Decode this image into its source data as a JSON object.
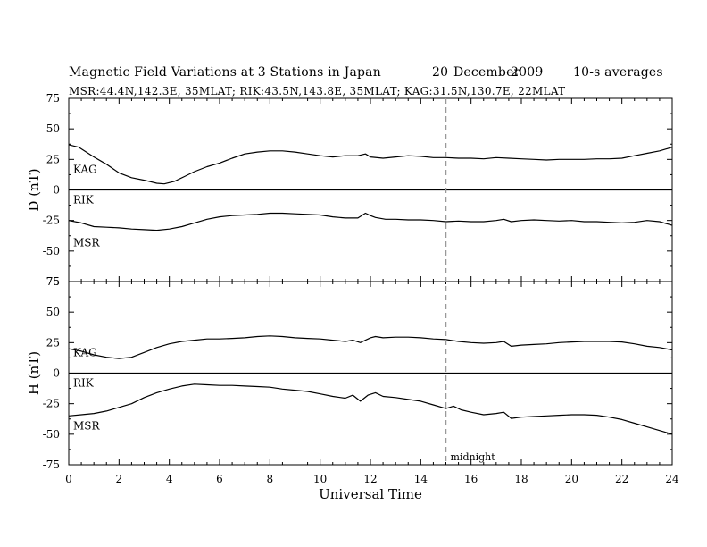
{
  "header": {
    "title": "Magnetic Field Variations at 3 Stations in Japan",
    "date_day": "20",
    "date_month": "December",
    "date_year": "2009",
    "averaging": "10-s averages",
    "stations": "MSR:44.4N,142.3E, 35MLAT;  RIK:43.5N,143.8E, 35MLAT;  KAG:31.5N,130.7E, 22MLAT"
  },
  "chart_data": [
    {
      "type": "line",
      "panel": "D",
      "ylabel": "D (nT)",
      "ylim": [
        -75,
        75
      ],
      "yticks": [
        75,
        50,
        25,
        0,
        -25,
        -50,
        -75
      ],
      "xlim": [
        0,
        24
      ],
      "series": [
        {
          "name": "KAG",
          "x": [
            0,
            0.4,
            1,
            1.5,
            2,
            2.5,
            3,
            3.5,
            3.8,
            4.2,
            4.6,
            5,
            5.5,
            6,
            6.5,
            7,
            7.5,
            8,
            8.5,
            9,
            9.5,
            10,
            10.5,
            11,
            11.5,
            11.8,
            12,
            12.5,
            13,
            13.5,
            14,
            14.5,
            15,
            15.5,
            16,
            16.5,
            17,
            17.5,
            18,
            18.5,
            19,
            19.5,
            20,
            20.5,
            21,
            21.5,
            22,
            22.5,
            23,
            23.5,
            24
          ],
          "y": [
            37,
            35,
            27,
            21,
            14,
            10,
            8,
            5.5,
            5,
            7,
            11,
            15,
            19,
            22,
            26,
            29.5,
            31,
            32,
            32,
            31,
            29.5,
            28,
            27,
            28,
            28,
            29.5,
            27,
            26,
            27,
            28,
            27.5,
            26.5,
            26.5,
            26,
            26,
            25.5,
            26.5,
            26,
            25.5,
            25,
            24.5,
            25,
            25,
            25,
            25.5,
            25.5,
            26,
            28,
            30,
            32,
            35
          ]
        },
        {
          "name": "RIK",
          "x": [
            0,
            24
          ],
          "y": [
            0,
            0
          ]
        },
        {
          "name": "MSR",
          "x": [
            0,
            0.5,
            1,
            1.5,
            2,
            2.5,
            3,
            3.5,
            4,
            4.5,
            5,
            5.5,
            6,
            6.5,
            7,
            7.5,
            8,
            8.5,
            9,
            9.5,
            10,
            10.5,
            11,
            11.5,
            11.8,
            12,
            12.2,
            12.6,
            13,
            13.5,
            14,
            14.5,
            15,
            15.5,
            16,
            16.5,
            17,
            17.3,
            17.6,
            18,
            18.5,
            19,
            19.5,
            20,
            20.5,
            21,
            21.5,
            22,
            22.5,
            23,
            23.5,
            24
          ],
          "y": [
            -25,
            -27,
            -30,
            -30.5,
            -31,
            -32,
            -32.5,
            -33,
            -32,
            -30,
            -27,
            -24,
            -22,
            -21,
            -20.5,
            -20,
            -19,
            -19,
            -19.5,
            -20,
            -20.5,
            -22,
            -23,
            -23,
            -19,
            -21,
            -22.5,
            -24,
            -24,
            -24.5,
            -24.5,
            -25,
            -26,
            -25.5,
            -26,
            -26,
            -25,
            -24,
            -26,
            -25,
            -24.5,
            -25,
            -25.5,
            -25,
            -26,
            -26,
            -26.5,
            -27,
            -26.5,
            -25,
            -26,
            -29
          ]
        }
      ]
    },
    {
      "type": "line",
      "panel": "H",
      "ylabel": "H (nT)",
      "ylim": [
        -75,
        75
      ],
      "yticks": [
        75,
        50,
        25,
        0,
        -25,
        -50,
        -75
      ],
      "xlim": [
        0,
        24
      ],
      "xticks": [
        0,
        2,
        4,
        6,
        8,
        10,
        12,
        14,
        16,
        18,
        20,
        22,
        24
      ],
      "xlabel": "Universal Time",
      "series": [
        {
          "name": "KAG",
          "x": [
            0,
            0.5,
            1,
            1.5,
            2,
            2.5,
            3,
            3.5,
            4,
            4.5,
            5,
            5.5,
            6,
            6.5,
            7,
            7.5,
            8,
            8.5,
            9,
            9.5,
            10,
            10.5,
            11,
            11.3,
            11.6,
            12,
            12.2,
            12.5,
            13,
            13.5,
            14,
            14.5,
            15,
            15.5,
            16,
            16.5,
            17,
            17.3,
            17.6,
            18,
            18.5,
            19,
            19.5,
            20,
            20.5,
            21,
            21.5,
            22,
            22.5,
            23,
            23.5,
            24
          ],
          "y": [
            20,
            18,
            15,
            13,
            12,
            13,
            17,
            21,
            24,
            26,
            27,
            28,
            28,
            28.5,
            29,
            30,
            30.5,
            30,
            29,
            28.5,
            28,
            27,
            26,
            27,
            25,
            29,
            30,
            29,
            29.5,
            29.5,
            29,
            28,
            27.5,
            26,
            25,
            24.5,
            25,
            26,
            22,
            23,
            23.5,
            24,
            25,
            25.5,
            26,
            26,
            26,
            25.5,
            24,
            22,
            21,
            19
          ]
        },
        {
          "name": "RIK",
          "x": [
            0,
            24
          ],
          "y": [
            0,
            0
          ]
        },
        {
          "name": "MSR",
          "x": [
            0,
            0.5,
            1,
            1.5,
            2,
            2.5,
            3,
            3.5,
            4,
            4.5,
            5,
            5.5,
            6,
            6.5,
            7,
            7.5,
            8,
            8.5,
            9,
            9.5,
            10,
            10.5,
            11,
            11.3,
            11.6,
            11.9,
            12.2,
            12.5,
            13,
            13.5,
            14,
            14.5,
            15,
            15.3,
            15.6,
            16,
            16.5,
            17,
            17.3,
            17.6,
            18,
            18.5,
            19,
            19.5,
            20,
            20.5,
            21,
            21.5,
            22,
            22.5,
            23,
            23.5,
            24
          ],
          "y": [
            -35,
            -34,
            -33,
            -31,
            -28,
            -25,
            -20,
            -16,
            -13,
            -10.5,
            -9,
            -9.5,
            -10,
            -10,
            -10.5,
            -11,
            -11.5,
            -13,
            -14,
            -15,
            -17,
            -19,
            -20.5,
            -18,
            -23,
            -18,
            -16,
            -19,
            -20,
            -21.5,
            -23,
            -26,
            -29,
            -27,
            -30,
            -32,
            -34,
            -33,
            -32,
            -37,
            -36,
            -35.5,
            -35,
            -34.5,
            -34,
            -34,
            -34.5,
            -36,
            -38,
            -41,
            -44,
            -47,
            -50
          ]
        }
      ]
    }
  ],
  "annotations": {
    "midnight_label": "midnight",
    "midnight_ut": 15
  }
}
